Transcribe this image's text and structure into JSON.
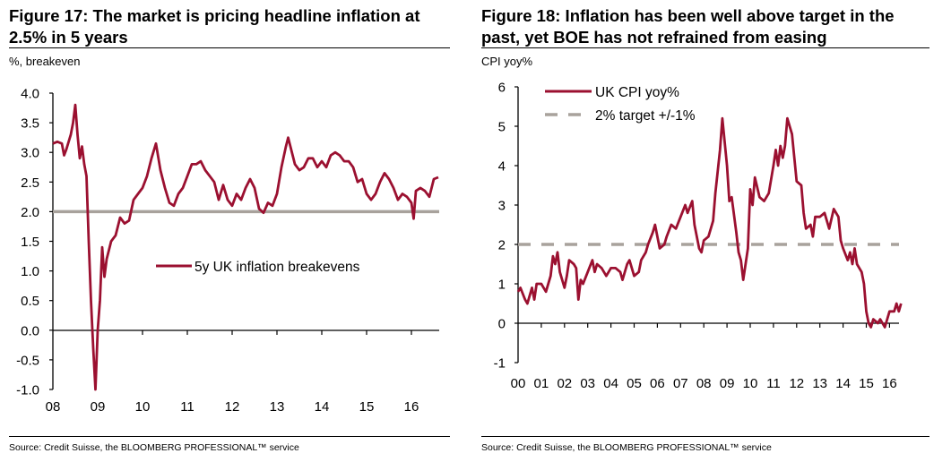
{
  "chart_data": [
    {
      "type": "line",
      "title": "Figure 17: The market is pricing headline inflation at",
      "title_line2": "2.5% in 5 years",
      "ylabel": "%, breakeven",
      "source": "Source: Credit Suisse, the BLOOMBERG PROFESSIONAL™ service",
      "ylim": [
        -1.0,
        4.0
      ],
      "xlim": [
        2008,
        2016.65
      ],
      "y_ticks": [
        "4.0",
        "3.5",
        "3.0",
        "2.5",
        "2.0",
        "1.5",
        "1.0",
        "0.5",
        "0.0",
        "-0.5",
        "-1.0"
      ],
      "x_ticks": [
        "08",
        "09",
        "10",
        "11",
        "12",
        "13",
        "14",
        "15",
        "16"
      ],
      "reference_line": {
        "y": 2.0,
        "color": "#a8a29c"
      },
      "legend": {
        "position": "center-right"
      },
      "grid": false,
      "series": [
        {
          "name": "5y UK inflation breakevens",
          "color": "#9b1030",
          "x": [
            2008.0,
            2008.1,
            2008.2,
            2008.25,
            2008.3,
            2008.4,
            2008.45,
            2008.5,
            2008.55,
            2008.6,
            2008.65,
            2008.7,
            2008.75,
            2008.8,
            2008.85,
            2008.9,
            2008.95,
            2009.0,
            2009.05,
            2009.1,
            2009.15,
            2009.2,
            2009.3,
            2009.4,
            2009.5,
            2009.6,
            2009.7,
            2009.8,
            2009.9,
            2010.0,
            2010.1,
            2010.2,
            2010.3,
            2010.4,
            2010.5,
            2010.6,
            2010.7,
            2010.8,
            2010.9,
            2011.0,
            2011.1,
            2011.2,
            2011.3,
            2011.4,
            2011.5,
            2011.6,
            2011.7,
            2011.8,
            2011.9,
            2012.0,
            2012.1,
            2012.2,
            2012.3,
            2012.4,
            2012.5,
            2012.6,
            2012.7,
            2012.8,
            2012.9,
            2013.0,
            2013.1,
            2013.2,
            2013.25,
            2013.3,
            2013.4,
            2013.5,
            2013.6,
            2013.7,
            2013.8,
            2013.9,
            2014.0,
            2014.1,
            2014.2,
            2014.3,
            2014.4,
            2014.5,
            2014.6,
            2014.7,
            2014.8,
            2014.9,
            2015.0,
            2015.1,
            2015.2,
            2015.3,
            2015.4,
            2015.5,
            2015.6,
            2015.7,
            2015.8,
            2015.9,
            2016.0,
            2016.05,
            2016.1,
            2016.2,
            2016.3,
            2016.4,
            2016.5,
            2016.6
          ],
          "y": [
            3.15,
            3.18,
            3.15,
            2.95,
            3.05,
            3.3,
            3.5,
            3.8,
            3.3,
            2.9,
            3.1,
            2.8,
            2.6,
            1.5,
            0.5,
            -0.3,
            -1.0,
            0.0,
            0.5,
            1.4,
            0.9,
            1.2,
            1.5,
            1.6,
            1.9,
            1.8,
            1.85,
            2.2,
            2.3,
            2.4,
            2.6,
            2.9,
            3.15,
            2.7,
            2.4,
            2.15,
            2.1,
            2.3,
            2.4,
            2.6,
            2.8,
            2.8,
            2.85,
            2.7,
            2.6,
            2.5,
            2.2,
            2.45,
            2.2,
            2.1,
            2.3,
            2.2,
            2.4,
            2.55,
            2.4,
            2.05,
            1.98,
            2.15,
            2.1,
            2.3,
            2.75,
            3.1,
            3.25,
            3.1,
            2.8,
            2.7,
            2.75,
            2.9,
            2.9,
            2.75,
            2.85,
            2.75,
            2.95,
            3.0,
            2.95,
            2.85,
            2.85,
            2.75,
            2.5,
            2.55,
            2.3,
            2.2,
            2.3,
            2.5,
            2.65,
            2.55,
            2.4,
            2.2,
            2.3,
            2.25,
            2.15,
            1.88,
            2.35,
            2.4,
            2.35,
            2.25,
            2.55,
            2.58
          ]
        }
      ]
    },
    {
      "type": "line",
      "title": "Figure 18: Inflation has been well above target in the",
      "title_line2": "past, yet BOE has not refrained from easing",
      "ylabel": "CPI yoy%",
      "source": "Source: Credit Suisse, the BLOOMBERG PROFESSIONAL™ service",
      "ylim": [
        -1,
        6
      ],
      "xlim": [
        2000,
        2016.55
      ],
      "y_ticks": [
        "6",
        "5",
        "4",
        "3",
        "2",
        "1",
        "0",
        "-1"
      ],
      "x_ticks": [
        "00",
        "01",
        "02",
        "03",
        "04",
        "05",
        "06",
        "07",
        "08",
        "09",
        "10",
        "11",
        "12",
        "13",
        "14",
        "15",
        "16"
      ],
      "legend": {
        "position": "top-left"
      },
      "grid": false,
      "series": [
        {
          "name": "UK CPI yoy%",
          "color": "#9b1030",
          "x": [
            2000.0,
            2000.1,
            2000.3,
            2000.4,
            2000.6,
            2000.7,
            2000.8,
            2001.0,
            2001.1,
            2001.2,
            2001.4,
            2001.5,
            2001.6,
            2001.7,
            2001.8,
            2002.0,
            2002.1,
            2002.2,
            2002.4,
            2002.5,
            2002.6,
            2002.7,
            2002.8,
            2003.0,
            2003.2,
            2003.3,
            2003.4,
            2003.6,
            2003.8,
            2004.0,
            2004.2,
            2004.4,
            2004.5,
            2004.7,
            2004.8,
            2005.0,
            2005.2,
            2005.3,
            2005.5,
            2005.6,
            2005.8,
            2005.9,
            2006.0,
            2006.1,
            2006.3,
            2006.4,
            2006.6,
            2006.8,
            2007.0,
            2007.2,
            2007.3,
            2007.5,
            2007.6,
            2007.8,
            2007.9,
            2008.0,
            2008.2,
            2008.4,
            2008.5,
            2008.7,
            2008.8,
            2009.0,
            2009.1,
            2009.2,
            2009.4,
            2009.5,
            2009.6,
            2009.7,
            2009.9,
            2010.0,
            2010.1,
            2010.2,
            2010.4,
            2010.6,
            2010.8,
            2011.0,
            2011.1,
            2011.2,
            2011.3,
            2011.4,
            2011.5,
            2011.6,
            2011.8,
            2012.0,
            2012.2,
            2012.3,
            2012.4,
            2012.6,
            2012.7,
            2012.8,
            2013.0,
            2013.2,
            2013.4,
            2013.6,
            2013.8,
            2013.9,
            2014.0,
            2014.2,
            2014.3,
            2014.4,
            2014.5,
            2014.6,
            2014.8,
            2014.9,
            2015.0,
            2015.1,
            2015.2,
            2015.3,
            2015.5,
            2015.6,
            2015.8,
            2015.9,
            2016.0,
            2016.2,
            2016.3,
            2016.4,
            2016.5
          ],
          "y": [
            0.8,
            0.9,
            0.6,
            0.5,
            0.9,
            0.6,
            1.0,
            1.0,
            0.9,
            0.8,
            1.2,
            1.7,
            1.5,
            1.8,
            1.3,
            0.9,
            1.2,
            1.6,
            1.5,
            1.4,
            0.6,
            1.1,
            1.0,
            1.3,
            1.6,
            1.3,
            1.5,
            1.4,
            1.2,
            1.4,
            1.4,
            1.3,
            1.1,
            1.5,
            1.6,
            1.2,
            1.3,
            1.6,
            1.8,
            2.0,
            2.3,
            2.5,
            2.2,
            1.9,
            2.0,
            2.2,
            2.5,
            2.4,
            2.7,
            3.0,
            2.8,
            3.1,
            2.5,
            1.9,
            1.8,
            2.1,
            2.2,
            2.6,
            3.3,
            4.4,
            5.2,
            4.0,
            3.1,
            3.2,
            2.3,
            1.8,
            1.6,
            1.1,
            1.9,
            3.4,
            3.0,
            3.7,
            3.2,
            3.1,
            3.3,
            4.0,
            4.4,
            4.0,
            4.5,
            4.2,
            4.5,
            5.2,
            4.8,
            3.6,
            3.5,
            2.8,
            2.4,
            2.5,
            2.2,
            2.7,
            2.7,
            2.8,
            2.4,
            2.9,
            2.7,
            2.1,
            1.9,
            1.6,
            1.8,
            1.5,
            1.9,
            1.5,
            1.3,
            1.0,
            0.3,
            0.0,
            -0.1,
            0.1,
            0.0,
            0.1,
            -0.1,
            0.1,
            0.3,
            0.3,
            0.5,
            0.3,
            0.5
          ]
        },
        {
          "name": "2% target +/-1%",
          "color": "#a8a29c",
          "dashed": true,
          "y_const": 2
        }
      ]
    }
  ]
}
